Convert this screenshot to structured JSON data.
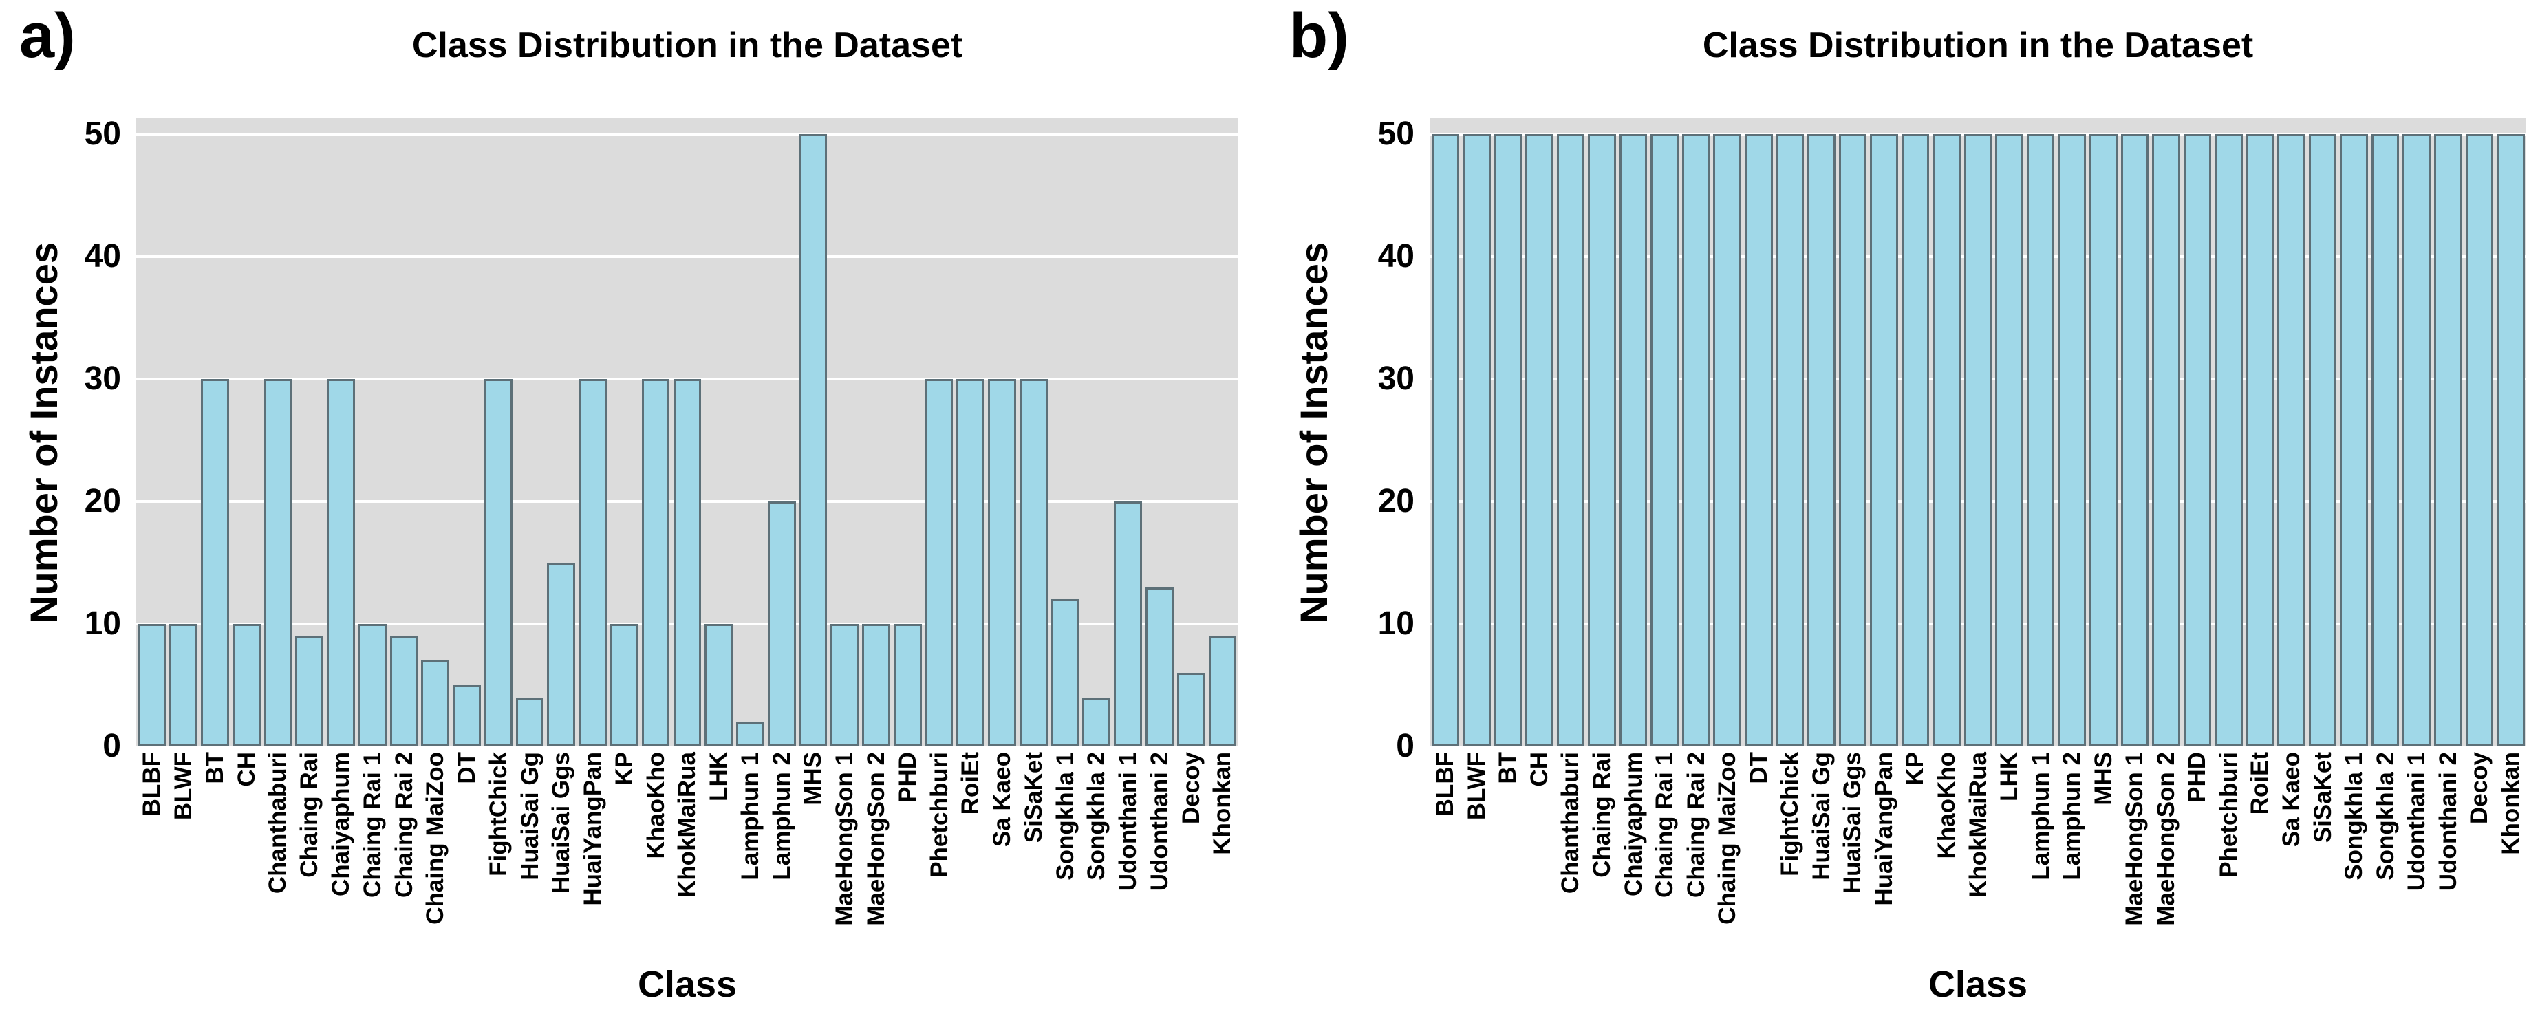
{
  "colors": {
    "figure_background": "#ffffff",
    "plot_background": "#dcdcdc",
    "gridline": "#ffffff",
    "bar_fill": "#a0d8e8",
    "bar_edge": "#5d7078",
    "text": "#000000"
  },
  "chart_data": [
    {
      "panel_label": "a)",
      "type": "bar",
      "title": "Class Distribution in the Dataset",
      "xlabel": "Class",
      "ylabel": "Number of Instances",
      "ylim": [
        0,
        50
      ],
      "yticks": [
        0,
        10,
        20,
        30,
        40,
        50
      ],
      "grid": "horizontal",
      "legend_position": "none",
      "categories": [
        "BLBF",
        "BLWF",
        "BT",
        "CH",
        "Chanthaburi",
        "Chaing Rai",
        "Chaiyaphum",
        "Chaing Rai 1",
        "Chaing Rai 2",
        "Chaing MaiZoo",
        "DT",
        "FightChick",
        "HuaiSai Gg",
        "HuaiSai Ggs",
        "HuaiYangPan",
        "KP",
        "KhaoKho",
        "KhokMaiRua",
        "LHK",
        "Lamphun 1",
        "Lamphun 2",
        "MHS",
        "MaeHongSon 1",
        "MaeHongSon 2",
        "PHD",
        "Phetchburi",
        "RoiEt",
        "Sa Kaeo",
        "SiSaKet",
        "Songkhla 1",
        "Songkhla 2",
        "Udonthani 1",
        "Udonthani 2",
        "Decoy",
        "Khonkan"
      ],
      "values": [
        10,
        10,
        30,
        10,
        30,
        9,
        30,
        10,
        9,
        7,
        5,
        30,
        4,
        15,
        30,
        10,
        30,
        30,
        10,
        2,
        20,
        50,
        10,
        10,
        10,
        30,
        30,
        30,
        30,
        12,
        4,
        20,
        13,
        6,
        9
      ]
    },
    {
      "panel_label": "b)",
      "type": "bar",
      "title": "Class Distribution in the Dataset",
      "xlabel": "Class",
      "ylabel": "Number of Instances",
      "ylim": [
        0,
        50
      ],
      "yticks": [
        0,
        10,
        20,
        30,
        40,
        50
      ],
      "grid": "horizontal",
      "legend_position": "none",
      "categories": [
        "BLBF",
        "BLWF",
        "BT",
        "CH",
        "Chanthaburi",
        "Chaing Rai",
        "Chaiyaphum",
        "Chaing Rai 1",
        "Chaing Rai 2",
        "Chaing MaiZoo",
        "DT",
        "FightChick",
        "HuaiSai Gg",
        "HuaiSai Ggs",
        "HuaiYangPan",
        "KP",
        "KhaoKho",
        "KhokMaiRua",
        "LHK",
        "Lamphun 1",
        "Lamphun 2",
        "MHS",
        "MaeHongSon 1",
        "MaeHongSon 2",
        "PHD",
        "Phetchburi",
        "RoiEt",
        "Sa Kaeo",
        "SiSaKet",
        "Songkhla 1",
        "Songkhla 2",
        "Udonthani 1",
        "Udonthani 2",
        "Decoy",
        "Khonkan"
      ],
      "values": [
        50,
        50,
        50,
        50,
        50,
        50,
        50,
        50,
        50,
        50,
        50,
        50,
        50,
        50,
        50,
        50,
        50,
        50,
        50,
        50,
        50,
        50,
        50,
        50,
        50,
        50,
        50,
        50,
        50,
        50,
        50,
        50,
        50,
        50,
        50
      ]
    }
  ]
}
